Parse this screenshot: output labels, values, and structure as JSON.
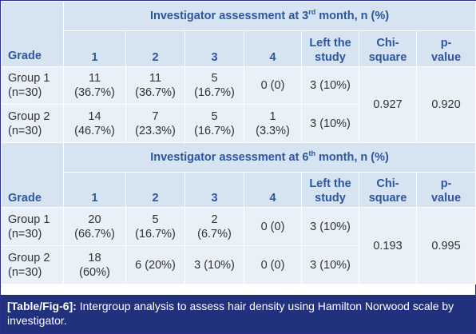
{
  "section1": {
    "title_prefix": "Investigator assessment at 3",
    "title_sup": "rd",
    "title_suffix": " month, n (%)",
    "headers": {
      "grade": "Grade",
      "c1": "1",
      "c2": "2",
      "c3": "3",
      "c4": "4",
      "left_l1": "Left the",
      "left_l2": "study",
      "chi_l1": "Chi-",
      "chi_l2": "square",
      "p_l1": "p-",
      "p_l2": "value"
    },
    "rows": [
      {
        "group_l1": "Group 1",
        "group_l2": "(n=30)",
        "g1_l1": "11",
        "g1_l2": "(36.7%)",
        "g2_l1": "11",
        "g2_l2": "(36.7%)",
        "g3_l1": "5",
        "g3_l2": "(16.7%)",
        "g4": "0 (0)",
        "left": "3 (10%)"
      },
      {
        "group_l1": "Group 2",
        "group_l2": "(n=30)",
        "g1_l1": "14",
        "g1_l2": "(46.7%)",
        "g2_l1": "7",
        "g2_l2": "(23.3%)",
        "g3_l1": "5",
        "g3_l2": "(16.7%)",
        "g4_l1": "1",
        "g4_l2": "(3.3%)",
        "left": "3 (10%)"
      }
    ],
    "chi_square": "0.927",
    "p_value": "0.920"
  },
  "section2": {
    "title_prefix": "Investigator assessment at 6",
    "title_sup": "th",
    "title_suffix": " month, n (%)",
    "headers": {
      "grade": "Grade",
      "c1": "1",
      "c2": "2",
      "c3": "3",
      "c4": "4",
      "left_l1": "Left the",
      "left_l2": "study",
      "chi_l1": "Chi-",
      "chi_l2": "square",
      "p_l1": "p-",
      "p_l2": "value"
    },
    "rows": [
      {
        "group_l1": "Group 1",
        "group_l2": "(n=30)",
        "g1_l1": "20",
        "g1_l2": "(66.7%)",
        "g2_l1": "5",
        "g2_l2": "(16.7%)",
        "g3_l1": "2",
        "g3_l2": "(6.7%)",
        "g4": "0 (0)",
        "left": "3 (10%)"
      },
      {
        "group_l1": "Group 2",
        "group_l2": "(n=30)",
        "g1_l1": "18",
        "g1_l2": "(60%)",
        "g2": "6 (20%)",
        "g3": "3 (10%)",
        "g4": "0 (0)",
        "left": "3 (10%)"
      }
    ],
    "chi_square": "0.193",
    "p_value": "0.995"
  },
  "caption": {
    "label": "[Table/Fig-6]:",
    "text": " Intergroup analysis to assess hair density using Hamilton Norwood scale by investigator."
  },
  "colors": {
    "header_bg": "#d6e3f1",
    "body_bg": "#e9f0f8",
    "header_text": "#2c56a0",
    "caption_bg": "#22317d",
    "border": "#2b2f8c"
  }
}
